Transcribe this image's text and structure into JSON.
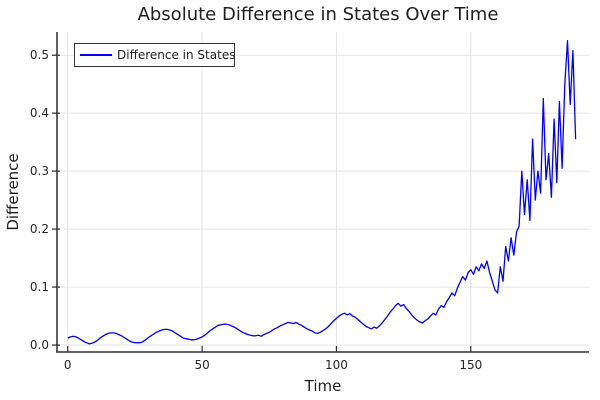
{
  "title": "Absolute Difference in States Over Time",
  "colors": {
    "line": "#0000ff",
    "grid": "#e3e3e3",
    "axis": "#2e2e2e",
    "background": "#ffffff",
    "legend_border": "#333333",
    "legend_background": "#ffffff"
  },
  "legend": {
    "label": "Difference in States",
    "position": "top-left"
  },
  "chart_data": {
    "type": "line",
    "title": "Absolute Difference in States Over Time",
    "xlabel": "Time",
    "ylabel": "Difference",
    "xlim": [
      -4,
      194
    ],
    "ylim": [
      -0.012,
      0.54
    ],
    "xticks": [
      0,
      50,
      100,
      150
    ],
    "xticklabels": [
      "0",
      "50",
      "100",
      "150"
    ],
    "yticks": [
      0.0,
      0.1,
      0.2,
      0.3,
      0.4,
      0.5
    ],
    "yticklabels": [
      "0.0",
      "0.1",
      "0.2",
      "0.3",
      "0.4",
      "0.5"
    ],
    "grid": true,
    "legend_position": "top-left",
    "series": [
      {
        "name": "Difference in States",
        "color": "#0000ff",
        "x_start": 0,
        "x_step": 1,
        "y": [
          0.012,
          0.014,
          0.015,
          0.014,
          0.012,
          0.009,
          0.006,
          0.004,
          0.002,
          0.003,
          0.005,
          0.008,
          0.012,
          0.015,
          0.018,
          0.02,
          0.021,
          0.021,
          0.02,
          0.018,
          0.016,
          0.013,
          0.01,
          0.007,
          0.005,
          0.004,
          0.004,
          0.004,
          0.006,
          0.009,
          0.013,
          0.016,
          0.019,
          0.022,
          0.024,
          0.026,
          0.027,
          0.027,
          0.026,
          0.024,
          0.021,
          0.018,
          0.015,
          0.012,
          0.011,
          0.01,
          0.009,
          0.009,
          0.01,
          0.012,
          0.014,
          0.017,
          0.021,
          0.025,
          0.028,
          0.031,
          0.034,
          0.035,
          0.036,
          0.036,
          0.035,
          0.033,
          0.031,
          0.028,
          0.025,
          0.022,
          0.02,
          0.018,
          0.017,
          0.016,
          0.016,
          0.017,
          0.015,
          0.018,
          0.02,
          0.022,
          0.025,
          0.028,
          0.03,
          0.033,
          0.035,
          0.037,
          0.039,
          0.038,
          0.037,
          0.039,
          0.036,
          0.034,
          0.031,
          0.028,
          0.026,
          0.024,
          0.021,
          0.02,
          0.022,
          0.025,
          0.028,
          0.032,
          0.037,
          0.042,
          0.046,
          0.05,
          0.053,
          0.055,
          0.052,
          0.054,
          0.05,
          0.048,
          0.044,
          0.04,
          0.036,
          0.032,
          0.03,
          0.028,
          0.031,
          0.029,
          0.033,
          0.038,
          0.044,
          0.05,
          0.057,
          0.062,
          0.068,
          0.072,
          0.067,
          0.07,
          0.063,
          0.058,
          0.052,
          0.047,
          0.043,
          0.04,
          0.038,
          0.042,
          0.045,
          0.05,
          0.055,
          0.052,
          0.062,
          0.068,
          0.065,
          0.075,
          0.082,
          0.09,
          0.085,
          0.098,
          0.108,
          0.118,
          0.112,
          0.125,
          0.13,
          0.122,
          0.135,
          0.128,
          0.14,
          0.132,
          0.145,
          0.125,
          0.11,
          0.095,
          0.09,
          0.135,
          0.11,
          0.17,
          0.145,
          0.185,
          0.155,
          0.195,
          0.205,
          0.3,
          0.225,
          0.285,
          0.215,
          0.355,
          0.25,
          0.3,
          0.262,
          0.425,
          0.285,
          0.33,
          0.255,
          0.39,
          0.28,
          0.42,
          0.305,
          0.45,
          0.525,
          0.415,
          0.508,
          0.355
        ]
      }
    ]
  }
}
